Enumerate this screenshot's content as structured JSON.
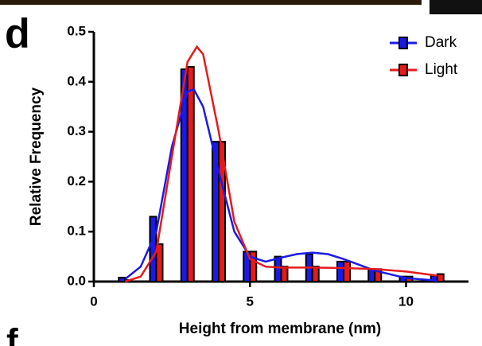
{
  "chart_data": {
    "type": "bar",
    "panel_labels": [
      "d",
      "f"
    ],
    "xlabel": "Height from membrane (nm)",
    "ylabel": "Relative Frequency",
    "x": [
      1,
      2,
      3,
      4,
      5,
      6,
      7,
      8,
      9,
      10,
      11
    ],
    "series": [
      {
        "name": "Dark",
        "color": "#1a1ae6",
        "values": [
          0.008,
          0.13,
          0.425,
          0.28,
          0.06,
          0.05,
          0.055,
          0.04,
          0.025,
          0.01,
          0.012
        ],
        "fit": {
          "x": [
            1,
            1.5,
            2,
            2.5,
            3,
            3.2,
            3.5,
            4,
            4.5,
            5,
            5.5,
            6,
            6.5,
            7,
            7.5,
            8,
            9,
            10,
            11
          ],
          "values": [
            0.005,
            0.03,
            0.1,
            0.27,
            0.38,
            0.385,
            0.35,
            0.22,
            0.1,
            0.05,
            0.04,
            0.048,
            0.055,
            0.058,
            0.055,
            0.045,
            0.022,
            0.007,
            0.002
          ]
        }
      },
      {
        "name": "Light",
        "color": "#e61a1a",
        "values": [
          0.003,
          0.075,
          0.43,
          0.28,
          0.06,
          0.03,
          0.03,
          0.04,
          0.025,
          0.01,
          0.015
        ],
        "fit": {
          "x": [
            1,
            1.5,
            2,
            2.5,
            3,
            3.3,
            3.5,
            4,
            4.5,
            5,
            5.5,
            6,
            7,
            8,
            9,
            10,
            11
          ],
          "values": [
            0.0,
            0.01,
            0.06,
            0.25,
            0.44,
            0.47,
            0.455,
            0.3,
            0.12,
            0.045,
            0.03,
            0.028,
            0.028,
            0.027,
            0.025,
            0.02,
            0.012
          ]
        }
      }
    ],
    "xlim": [
      0,
      12
    ],
    "xticks": [
      0,
      5,
      10
    ],
    "ylim": [
      0,
      0.5
    ],
    "yticks": [
      {
        "value": 0,
        "label": "0.0"
      },
      0.1,
      0.2,
      0.3,
      0.4,
      0.5
    ],
    "legend": "top-right"
  }
}
